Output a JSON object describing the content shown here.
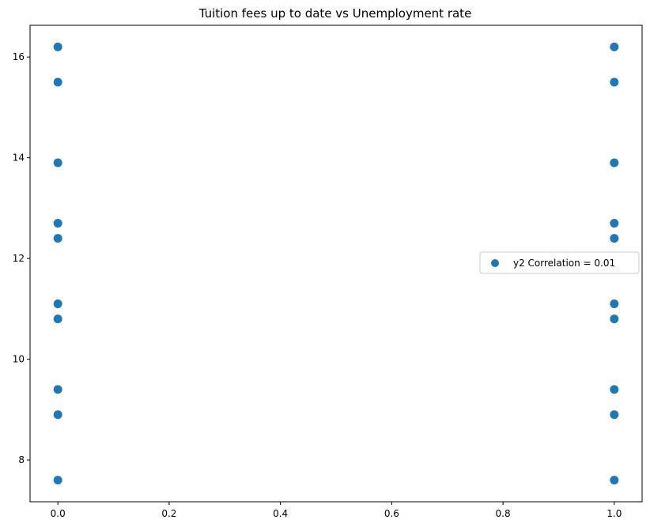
{
  "chart_data": {
    "type": "scatter",
    "title": "Tuition fees up to date vs Unemployment rate",
    "xlabel": "",
    "ylabel": "",
    "xlim": [
      -0.05,
      1.05
    ],
    "ylim": [
      7.17,
      16.63
    ],
    "xticks": [
      "0.0",
      "0.2",
      "0.4",
      "0.6",
      "0.8",
      "1.0"
    ],
    "yticks": [
      "8",
      "10",
      "12",
      "14",
      "16"
    ],
    "grid": false,
    "legend": {
      "position": "center-right",
      "entries": [
        "y2 Correlation = 0.01"
      ]
    },
    "marker_color": "#1f77b4",
    "series": [
      {
        "name": "y2 Correlation = 0.01",
        "points": [
          [
            0,
            16.2
          ],
          [
            0,
            15.5
          ],
          [
            0,
            13.9
          ],
          [
            0,
            12.7
          ],
          [
            0,
            12.4
          ],
          [
            0,
            11.1
          ],
          [
            0,
            10.8
          ],
          [
            0,
            9.4
          ],
          [
            0,
            8.9
          ],
          [
            0,
            7.6
          ],
          [
            1,
            16.2
          ],
          [
            1,
            15.5
          ],
          [
            1,
            13.9
          ],
          [
            1,
            12.7
          ],
          [
            1,
            12.4
          ],
          [
            1,
            11.1
          ],
          [
            1,
            10.8
          ],
          [
            1,
            9.4
          ],
          [
            1,
            8.9
          ],
          [
            1,
            7.6
          ]
        ]
      }
    ]
  }
}
